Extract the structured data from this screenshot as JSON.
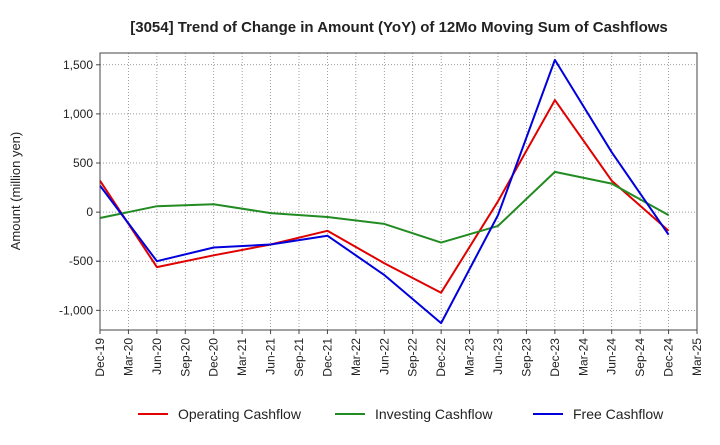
{
  "chart_data": {
    "type": "line",
    "title": "[3054]  Trend of Change in Amount (YoY) of 12Mo Moving Sum of Cashflows",
    "xlabel": "",
    "ylabel": "Amount (million yen)",
    "ylim": [
      -1200,
      1620
    ],
    "yticks": [
      -1000,
      -500,
      0,
      500,
      1000,
      1500
    ],
    "ytick_labels": [
      "-1,000",
      "-500",
      "0",
      "500",
      "1,000",
      "1,500"
    ],
    "x_tick_labels": [
      "Dec-19",
      "Mar-20",
      "Jun-20",
      "Sep-20",
      "Dec-20",
      "Mar-21",
      "Jun-21",
      "Sep-21",
      "Dec-21",
      "Mar-22",
      "Jun-22",
      "Sep-22",
      "Dec-22",
      "Mar-23",
      "Jun-23",
      "Sep-23",
      "Dec-23",
      "Mar-24",
      "Jun-24",
      "Sep-24",
      "Dec-24",
      "Mar-25"
    ],
    "grid": true,
    "legend_position": "bottom",
    "series": [
      {
        "name": "Operating Cashflow",
        "color": "#e00000",
        "points": [
          [
            0,
            320
          ],
          [
            2,
            -560
          ],
          [
            4,
            -440
          ],
          [
            6,
            -330
          ],
          [
            8,
            -190
          ],
          [
            10,
            -520
          ],
          [
            12,
            -820
          ],
          [
            14,
            110
          ],
          [
            16,
            1140
          ],
          [
            18,
            320
          ],
          [
            20,
            -190
          ]
        ]
      },
      {
        "name": "Investing Cashflow",
        "color": "#228b22",
        "points": [
          [
            0,
            -60
          ],
          [
            2,
            60
          ],
          [
            4,
            80
          ],
          [
            6,
            -10
          ],
          [
            8,
            -50
          ],
          [
            10,
            -120
          ],
          [
            12,
            -310
          ],
          [
            14,
            -140
          ],
          [
            16,
            410
          ],
          [
            18,
            290
          ],
          [
            20,
            -30
          ]
        ]
      },
      {
        "name": "Free Cashflow",
        "color": "#0000dd",
        "points": [
          [
            0,
            270
          ],
          [
            2,
            -500
          ],
          [
            4,
            -360
          ],
          [
            6,
            -330
          ],
          [
            8,
            -240
          ],
          [
            10,
            -640
          ],
          [
            12,
            -1130
          ],
          [
            14,
            -30
          ],
          [
            16,
            1550
          ],
          [
            18,
            610
          ],
          [
            20,
            -230
          ]
        ]
      }
    ]
  }
}
